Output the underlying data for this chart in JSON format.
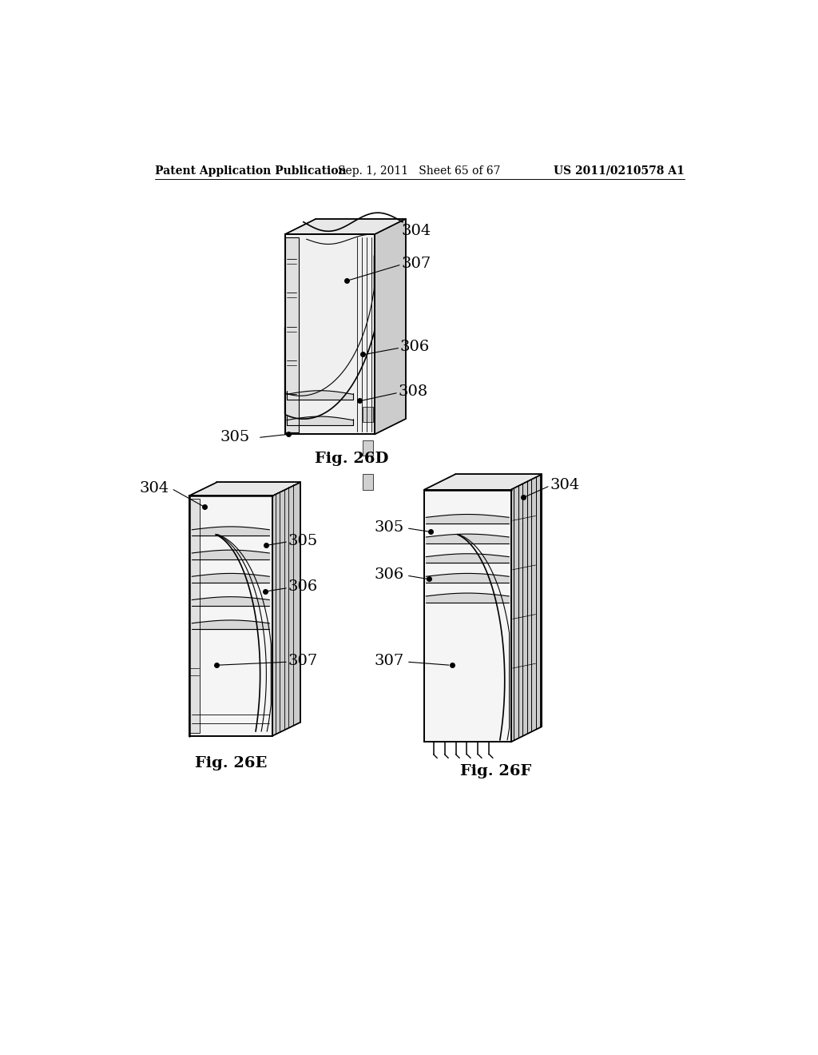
{
  "background_color": "#ffffff",
  "header_left": "Patent Application Publication",
  "header_center": "Sep. 1, 2011   Sheet 65 of 67",
  "header_right": "US 2011/0210578 A1",
  "fig_label_D": "Fig. 26D",
  "fig_label_E": "Fig. 26E",
  "fig_label_F": "Fig. 26F",
  "line_color": "#000000",
  "text_color": "#000000",
  "gray_light": "#e8e8e8",
  "gray_mid": "#cccccc",
  "gray_dark": "#aaaaaa"
}
